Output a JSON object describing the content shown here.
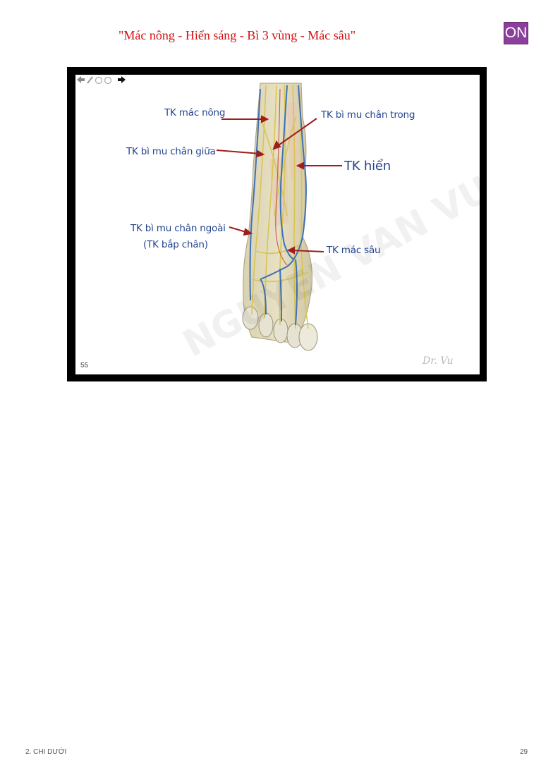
{
  "header": {
    "title": "\"Mác nông - Hiển sáng - Bì 3 vùng - Mác sâu\"",
    "badge": "ON"
  },
  "slide": {
    "labels": {
      "mac_nong": "TK mác nông",
      "bi_mu_chan_giua": "TK bì mu chân giữa",
      "bi_mu_chan_ngoai": "TK bì mu chân ngoài",
      "bap_chan": "(TK bắp chân)",
      "bi_mu_chan_trong": "TK bì mu chân trong",
      "hien": "TK hiển",
      "mac_sau": "TK mác sâu"
    },
    "slide_number": "55",
    "credit": "Dr. Vu",
    "colors": {
      "label": "#24458f",
      "arrow": "#a11d1d",
      "frame": "#000000"
    }
  },
  "footer": {
    "chapter": "2. CHI DƯỚI",
    "page": "29"
  }
}
